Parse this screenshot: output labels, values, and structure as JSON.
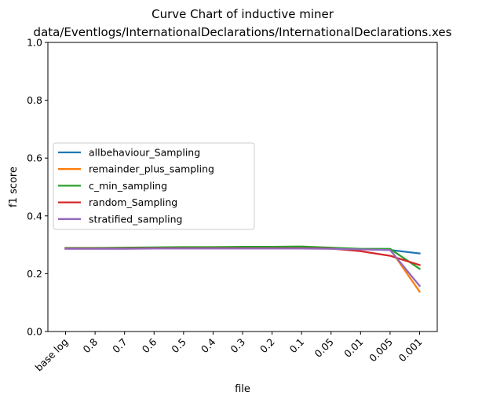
{
  "chart_data": {
    "type": "line",
    "title": "Curve Chart of inductive miner",
    "subtitle": "data/Eventlogs/InternationalDeclarations/InternationalDeclarations.xes",
    "xlabel": "file",
    "ylabel": "f1 score",
    "ylim": [
      0,
      1
    ],
    "yticks": [
      0.0,
      0.2,
      0.4,
      0.6,
      0.8,
      1.0
    ],
    "ytick_labels": [
      "0.0",
      "0.2",
      "0.4",
      "0.6",
      "0.8",
      "1.0"
    ],
    "categories": [
      "base log",
      "0.8",
      "0.7",
      "0.6",
      "0.5",
      "0.4",
      "0.3",
      "0.2",
      "0.1",
      "0.05",
      "0.01",
      "0.005",
      "0.001"
    ],
    "grid": false,
    "legend_position": "center-left",
    "series": [
      {
        "name": "allbehaviour_Sampling",
        "color": "#1f77b4",
        "values": [
          0.289,
          0.289,
          0.289,
          0.29,
          0.29,
          0.29,
          0.29,
          0.291,
          0.291,
          0.289,
          0.285,
          0.282,
          0.27
        ]
      },
      {
        "name": "remainder_plus_sampling",
        "color": "#ff7f0e",
        "values": [
          0.288,
          0.288,
          0.288,
          0.289,
          0.289,
          0.289,
          0.289,
          0.289,
          0.29,
          0.288,
          0.284,
          0.285,
          0.138
        ]
      },
      {
        "name": "c_min_sampling",
        "color": "#2ca02c",
        "values": [
          0.289,
          0.289,
          0.29,
          0.291,
          0.292,
          0.292,
          0.293,
          0.293,
          0.294,
          0.29,
          0.286,
          0.286,
          0.217
        ]
      },
      {
        "name": "random_Sampling",
        "color": "#d62728",
        "values": [
          0.287,
          0.287,
          0.287,
          0.288,
          0.288,
          0.288,
          0.288,
          0.288,
          0.288,
          0.287,
          0.278,
          0.262,
          0.23
        ]
      },
      {
        "name": "stratified_sampling",
        "color": "#9467bd",
        "values": [
          0.286,
          0.286,
          0.286,
          0.287,
          0.287,
          0.287,
          0.287,
          0.287,
          0.287,
          0.286,
          0.284,
          0.282,
          0.158
        ]
      }
    ]
  }
}
